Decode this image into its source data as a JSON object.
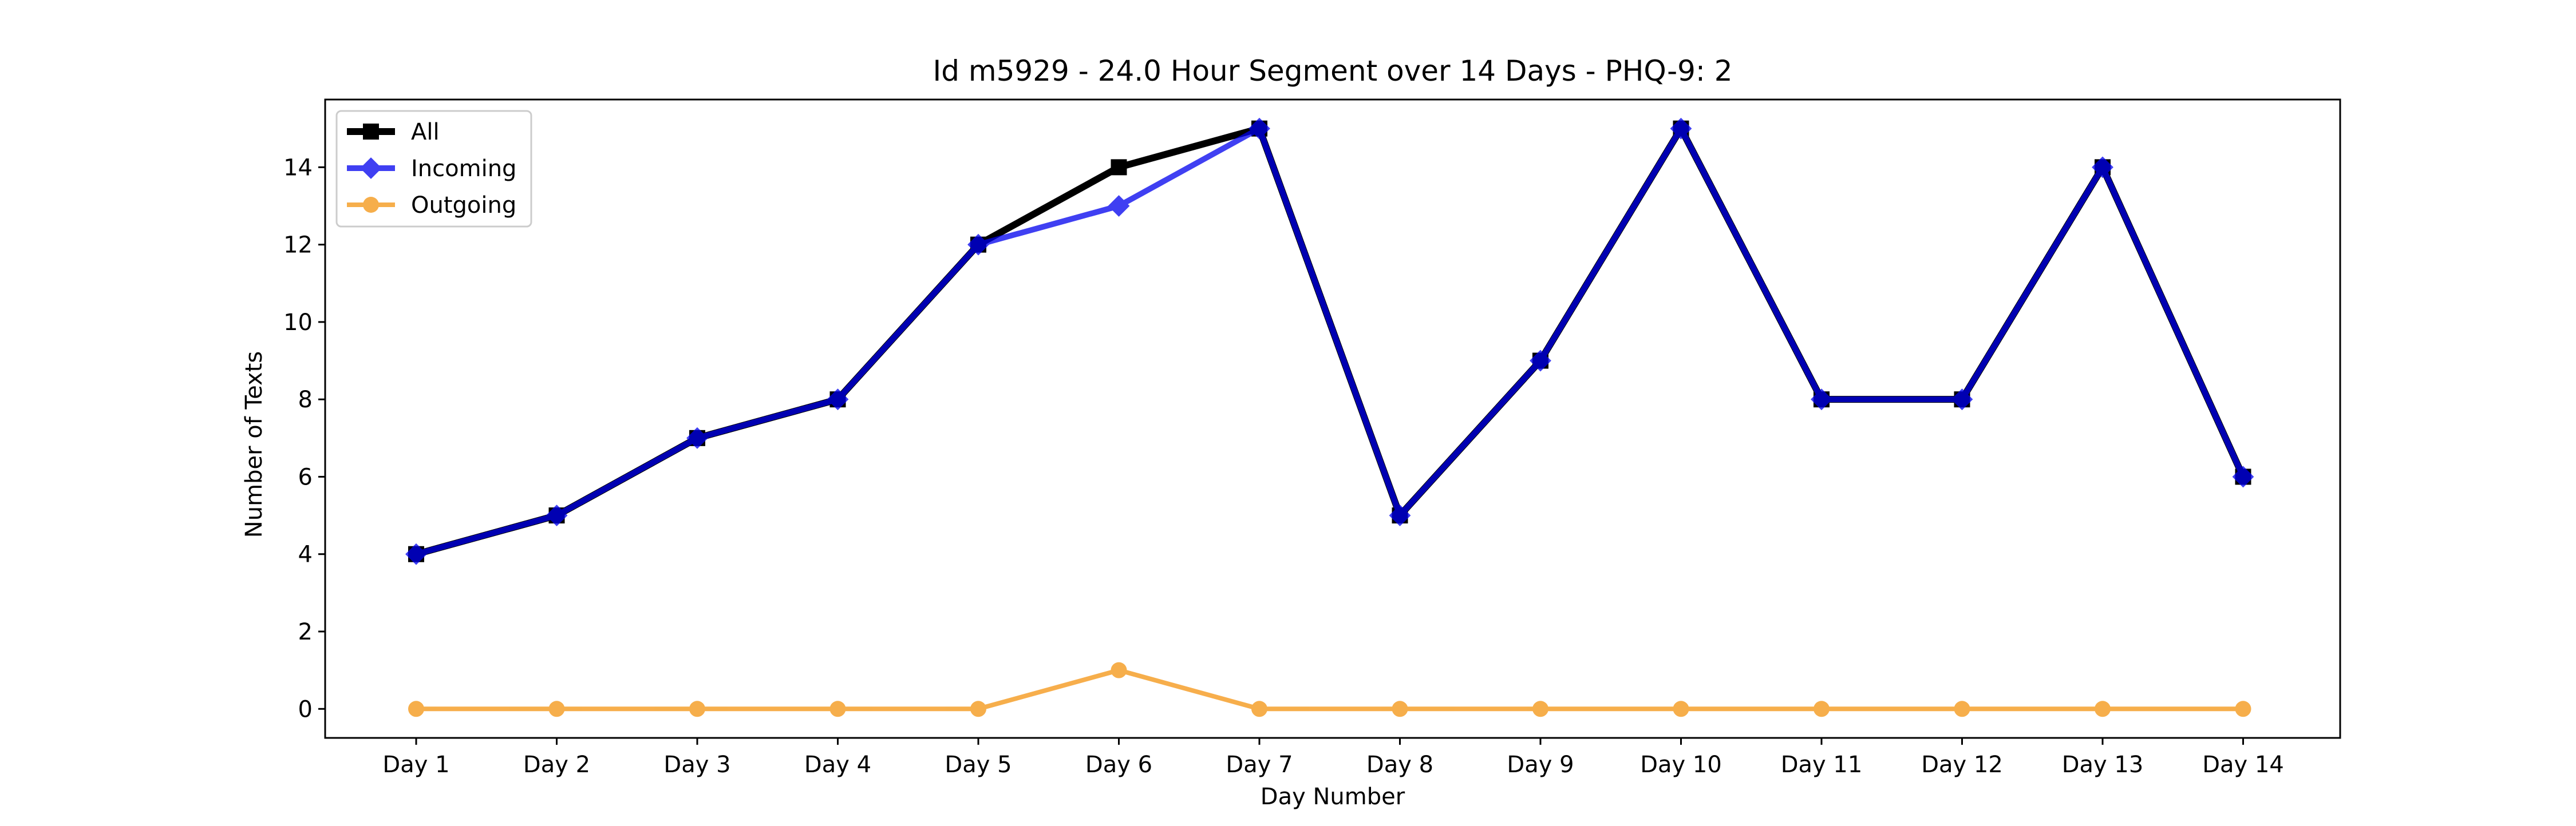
{
  "chart_data": {
    "type": "line",
    "title": "Id m5929 - 24.0 Hour Segment over 14 Days - PHQ-9: 2",
    "xlabel": "Day Number",
    "ylabel": "Number of Texts",
    "categories": [
      "Day 1",
      "Day 2",
      "Day 3",
      "Day 4",
      "Day 5",
      "Day 6",
      "Day 7",
      "Day 8",
      "Day 9",
      "Day 10",
      "Day 11",
      "Day 12",
      "Day 13",
      "Day 14"
    ],
    "ylim": [
      -0.75,
      15.75
    ],
    "yticks": [
      0,
      2,
      4,
      6,
      8,
      10,
      12,
      14
    ],
    "grid": false,
    "legend_position": "top-left",
    "series": [
      {
        "name": "All",
        "color": "#000000",
        "marker": "square",
        "values": [
          4,
          5,
          7,
          8,
          12,
          14,
          15,
          5,
          9,
          15,
          8,
          8,
          14,
          6
        ]
      },
      {
        "name": "Incoming",
        "color": "#0000ee",
        "marker": "diamond",
        "values": [
          4,
          5,
          7,
          8,
          12,
          13,
          15,
          5,
          9,
          15,
          8,
          8,
          14,
          6
        ]
      },
      {
        "name": "Outgoing",
        "color": "#f59a1f",
        "marker": "circle",
        "values": [
          0,
          0,
          0,
          0,
          0,
          1,
          0,
          0,
          0,
          0,
          0,
          0,
          0,
          0
        ]
      }
    ]
  }
}
